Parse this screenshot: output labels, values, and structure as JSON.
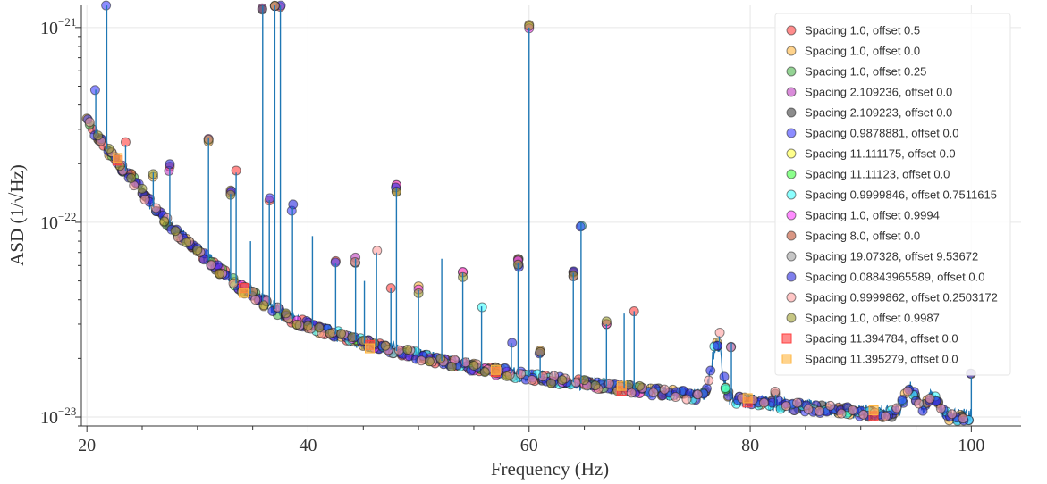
{
  "chart_data": {
    "type": "line",
    "title": "",
    "xlabel": "Frequency (Hz)",
    "ylabel": "ASD (1/√Hz)",
    "xlim": [
      19.5,
      104.5
    ],
    "ylim": [
      9e-24,
      1.3e-21
    ],
    "yscale": "log",
    "grid": true,
    "legend_position": "top-right",
    "x_ticks": [
      {
        "value": 20,
        "label": "20"
      },
      {
        "value": 40,
        "label": "40"
      },
      {
        "value": 60,
        "label": "60"
      },
      {
        "value": 80,
        "label": "80"
      },
      {
        "value": 100,
        "label": "100"
      }
    ],
    "y_ticks": [
      {
        "value": 1e-23,
        "base": "10",
        "exp": "−23"
      },
      {
        "value": 1e-22,
        "base": "10",
        "exp": "−22"
      },
      {
        "value": 1e-21,
        "base": "10",
        "exp": "−21"
      }
    ],
    "asd_curve": {
      "name": "ASD",
      "color": "#1f77b4",
      "x_range": [
        20,
        100
      ],
      "baseline_anchors": [
        [
          20,
          3.3e-22
        ],
        [
          22,
          2.3e-22
        ],
        [
          24,
          1.7e-22
        ],
        [
          26,
          1.2e-22
        ],
        [
          28,
          9e-23
        ],
        [
          30,
          7.2e-23
        ],
        [
          32,
          5.7e-23
        ],
        [
          34,
          4.6e-23
        ],
        [
          36,
          3.9e-23
        ],
        [
          38,
          3.3e-23
        ],
        [
          40,
          2.95e-23
        ],
        [
          45,
          2.4e-23
        ],
        [
          50,
          2.05e-23
        ],
        [
          55,
          1.8e-23
        ],
        [
          60,
          1.62e-23
        ],
        [
          65,
          1.48e-23
        ],
        [
          70,
          1.38e-23
        ],
        [
          75,
          1.28e-23
        ],
        [
          80,
          1.2e-23
        ],
        [
          85,
          1.12e-23
        ],
        [
          90,
          1.06e-23
        ],
        [
          95,
          1.02e-23
        ],
        [
          100,
          1e-23
        ]
      ],
      "spectral_lines": [
        {
          "f": 20.8,
          "peak": 4.8e-22
        },
        {
          "f": 21.8,
          "peak": 1.3e-21
        },
        {
          "f": 23.5,
          "peak": 2.5e-22
        },
        {
          "f": 26.0,
          "peak": 1.8e-22
        },
        {
          "f": 27.5,
          "peak": 1.9e-22
        },
        {
          "f": 31.0,
          "peak": 2.7e-22
        },
        {
          "f": 33.0,
          "peak": 1.4e-22
        },
        {
          "f": 33.5,
          "peak": 1.8e-22
        },
        {
          "f": 34.8,
          "peak": 8e-23
        },
        {
          "f": 35.9,
          "peak": 1.3e-21
        },
        {
          "f": 36.5,
          "peak": 1.3e-22
        },
        {
          "f": 37.0,
          "peak": 1.3e-21
        },
        {
          "f": 37.5,
          "peak": 1.3e-21
        },
        {
          "f": 38.6,
          "peak": 1.2e-22
        },
        {
          "f": 40.4,
          "peak": 8.5e-23
        },
        {
          "f": 42.5,
          "peak": 6.2e-23
        },
        {
          "f": 44.3,
          "peak": 6.5e-23
        },
        {
          "f": 45.1,
          "peak": 5e-23
        },
        {
          "f": 46.2,
          "peak": 7e-23
        },
        {
          "f": 47.5,
          "peak": 4.6e-23
        },
        {
          "f": 48.0,
          "peak": 1.5e-22
        },
        {
          "f": 50.0,
          "peak": 4.5e-23
        },
        {
          "f": 52.1,
          "peak": 6.5e-23
        },
        {
          "f": 54.0,
          "peak": 5.5e-23
        },
        {
          "f": 55.7,
          "peak": 3.7e-23
        },
        {
          "f": 58.4,
          "peak": 2.4e-23
        },
        {
          "f": 59.0,
          "peak": 6.2e-23
        },
        {
          "f": 60.0,
          "peak": 1e-21
        },
        {
          "f": 61.0,
          "peak": 2.1e-23
        },
        {
          "f": 64.0,
          "peak": 5.5e-23
        },
        {
          "f": 64.7,
          "peak": 1e-22
        },
        {
          "f": 67.0,
          "peak": 3e-23
        },
        {
          "f": 68.6,
          "peak": 3.4e-23
        },
        {
          "f": 69.5,
          "peak": 3.5e-23
        },
        {
          "f": 77.2,
          "peak": 2.6e-23
        },
        {
          "f": 78.3,
          "peak": 2.4e-23
        },
        {
          "f": 82.3,
          "peak": 1.3e-23
        },
        {
          "f": 100.0,
          "peak": 1.6e-23
        }
      ]
    },
    "legend": [
      {
        "label": "Spacing 1.0, offset 0.5",
        "color": "#ff4040",
        "marker": "circle"
      },
      {
        "label": "Spacing 1.0, offset 0.0",
        "color": "#ffb640",
        "marker": "circle"
      },
      {
        "label": "Spacing 1.0, offset 0.25",
        "color": "#4cb54c",
        "marker": "circle"
      },
      {
        "label": "Spacing 2.109236, offset 0.0",
        "color": "#c040c0",
        "marker": "circle"
      },
      {
        "label": "Spacing 2.109223, offset 0.0",
        "color": "#404040",
        "marker": "circle"
      },
      {
        "label": "Spacing 0.9878881, offset 0.0",
        "color": "#4040ff",
        "marker": "circle"
      },
      {
        "label": "Spacing 11.111175, offset 0.0",
        "color": "#ffff40",
        "marker": "circle"
      },
      {
        "label": "Spacing 11.11123, offset 0.0",
        "color": "#40ff40",
        "marker": "circle"
      },
      {
        "label": "Spacing 0.9999846, offset 0.7511615",
        "color": "#40ffff",
        "marker": "circle"
      },
      {
        "label": "Spacing 1.0, offset 0.9994",
        "color": "#ff40ff",
        "marker": "circle"
      },
      {
        "label": "Spacing 8.0, offset 0.0",
        "color": "#c05030",
        "marker": "circle"
      },
      {
        "label": "Spacing 19.07328, offset 9.53672",
        "color": "#a0a0a0",
        "marker": "circle"
      },
      {
        "label": "Spacing 0.08843965589, offset 0.0",
        "color": "#2a2ae0",
        "marker": "circle"
      },
      {
        "label": "Spacing 0.9999862, offset 0.2503172",
        "color": "#ffa0a0",
        "marker": "circle"
      },
      {
        "label": "Spacing 1.0, offset 0.9987",
        "color": "#a0a030",
        "marker": "circle"
      },
      {
        "label": "Spacing 11.394784, offset 0.0",
        "color": "#ff4040",
        "marker": "square"
      },
      {
        "label": "Spacing 11.395279, offset 0.0",
        "color": "#ffb640",
        "marker": "square"
      }
    ],
    "series": [
      {
        "name": "Spacing 1.0, offset 0.5",
        "spacing": 1.0,
        "offset": 0.5,
        "f_min": 20,
        "f_max": 70,
        "marker": "circle"
      },
      {
        "name": "Spacing 1.0, offset 0.0",
        "spacing": 1.0,
        "offset": 0.0,
        "f_min": 20,
        "f_max": 100,
        "marker": "circle"
      },
      {
        "name": "Spacing 1.0, offset 0.25",
        "spacing": 1.0,
        "offset": 0.25,
        "f_min": 20,
        "f_max": 40,
        "marker": "circle"
      },
      {
        "name": "Spacing 2.109236, offset 0.0",
        "spacing": 2.109236,
        "offset": 0.0,
        "f_min": 20,
        "f_max": 60,
        "marker": "circle"
      },
      {
        "name": "Spacing 2.109223, offset 0.0",
        "spacing": 2.109223,
        "offset": 0.0,
        "f_min": 20,
        "f_max": 100,
        "marker": "circle"
      },
      {
        "name": "Spacing 0.9878881, offset 0.0",
        "spacing": 0.9878881,
        "offset": 0.0,
        "f_min": 20,
        "f_max": 100,
        "marker": "circle"
      },
      {
        "name": "Spacing 11.111175, offset 0.0",
        "spacing": 11.111175,
        "offset": 0.0,
        "f_min": 20,
        "f_max": 100,
        "marker": "circle"
      },
      {
        "name": "Spacing 11.11123, offset 0.0",
        "spacing": 11.11123,
        "offset": 0.0,
        "f_min": 20,
        "f_max": 100,
        "marker": "circle"
      },
      {
        "name": "Spacing 0.9999846, offset 0.7511615",
        "spacing": 0.9999846,
        "offset": 0.7511615,
        "f_min": 40,
        "f_max": 100,
        "marker": "circle"
      },
      {
        "name": "Spacing 1.0, offset 0.9994",
        "spacing": 1.0,
        "offset": 0.9994,
        "f_min": 30,
        "f_max": 70,
        "marker": "circle"
      },
      {
        "name": "Spacing 8.0, offset 0.0",
        "spacing": 8.0,
        "offset": 0.0,
        "f_min": 20,
        "f_max": 100,
        "marker": "circle"
      },
      {
        "name": "Spacing 19.07328, offset 9.53672",
        "spacing": 19.07328,
        "offset": 9.53672,
        "f_min": 20,
        "f_max": 100,
        "marker": "circle"
      },
      {
        "name": "Spacing 0.08843965589, offset 0.0",
        "spacing": 0.08843965589,
        "offset": 0.0,
        "f_min": 20,
        "f_max": 100,
        "marker": "circle"
      },
      {
        "name": "Spacing 0.9999862, offset 0.2503172",
        "spacing": 0.9999862,
        "offset": 0.2503172,
        "f_min": 20,
        "f_max": 100,
        "marker": "circle"
      },
      {
        "name": "Spacing 1.0, offset 0.9987",
        "spacing": 1.0,
        "offset": 0.9987,
        "f_min": 20,
        "f_max": 70,
        "marker": "circle"
      },
      {
        "name": "Spacing 11.394784, offset 0.0",
        "spacing": 11.394784,
        "offset": 0.0,
        "f_min": 20,
        "f_max": 100,
        "marker": "square"
      },
      {
        "name": "Spacing 11.395279, offset 0.0",
        "spacing": 11.395279,
        "offset": 0.0,
        "f_min": 20,
        "f_max": 100,
        "marker": "square"
      }
    ]
  }
}
